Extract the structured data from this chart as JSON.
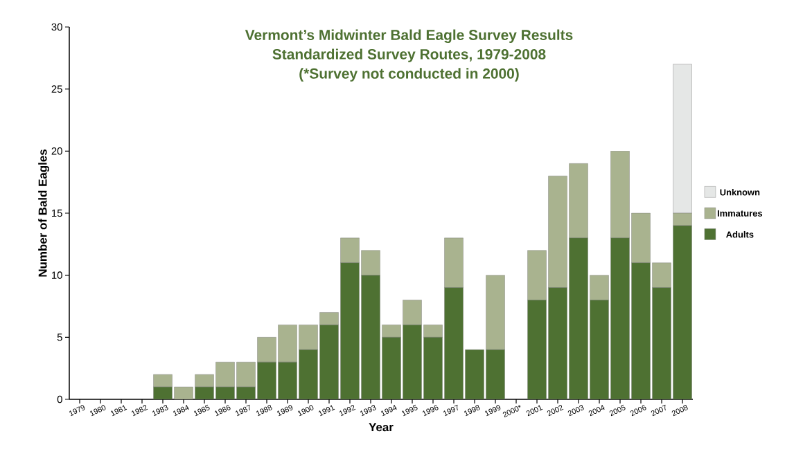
{
  "chart_data": {
    "type": "bar",
    "stacked": true,
    "title": "Vermont’s Midwinter Bald Eagle Survey Results",
    "subtitle": "Standardized Survey Routes, 1979-2008",
    "annotations": [
      "(*Survey not conducted in 2000)"
    ],
    "xlabel": "Year",
    "ylabel": "Number of Bald Eagles",
    "categories": [
      "1979",
      "1980",
      "1981",
      "1982",
      "1983",
      "1984",
      "1985",
      "1986",
      "1987",
      "1988",
      "1989",
      "1900",
      "1991",
      "1992",
      "1993",
      "1994",
      "1995",
      "1996",
      "1997",
      "1998",
      "1999",
      "2000*",
      "2001",
      "2002",
      "2003",
      "2004",
      "2005",
      "2006",
      "2007",
      "2008"
    ],
    "series": [
      {
        "name": "Adults",
        "color": "#4e7132",
        "values": [
          0,
          0,
          0,
          0,
          1,
          0,
          1,
          1,
          1,
          3,
          3,
          4,
          6,
          11,
          10,
          5,
          6,
          5,
          9,
          4,
          4,
          null,
          8,
          9,
          13,
          8,
          13,
          11,
          9,
          14
        ]
      },
      {
        "name": "Immatures",
        "color": "#a9b38f",
        "values": [
          0,
          0,
          0,
          0,
          1,
          1,
          1,
          2,
          2,
          2,
          3,
          2,
          1,
          2,
          2,
          1,
          2,
          1,
          4,
          0,
          6,
          null,
          4,
          9,
          6,
          2,
          7,
          4,
          2,
          1
        ]
      },
      {
        "name": "Unknown",
        "color": "#e5e7e6",
        "values": [
          0,
          0,
          0,
          0,
          0,
          0,
          0,
          0,
          0,
          0,
          0,
          0,
          0,
          0,
          0,
          0,
          0,
          0,
          0,
          0,
          0,
          null,
          0,
          0,
          0,
          0,
          0,
          0,
          0,
          12
        ]
      }
    ],
    "ylim": [
      0,
      30
    ],
    "yticks": [
      0,
      5,
      10,
      15,
      20,
      25,
      30
    ],
    "legend": "right",
    "grid": false
  }
}
